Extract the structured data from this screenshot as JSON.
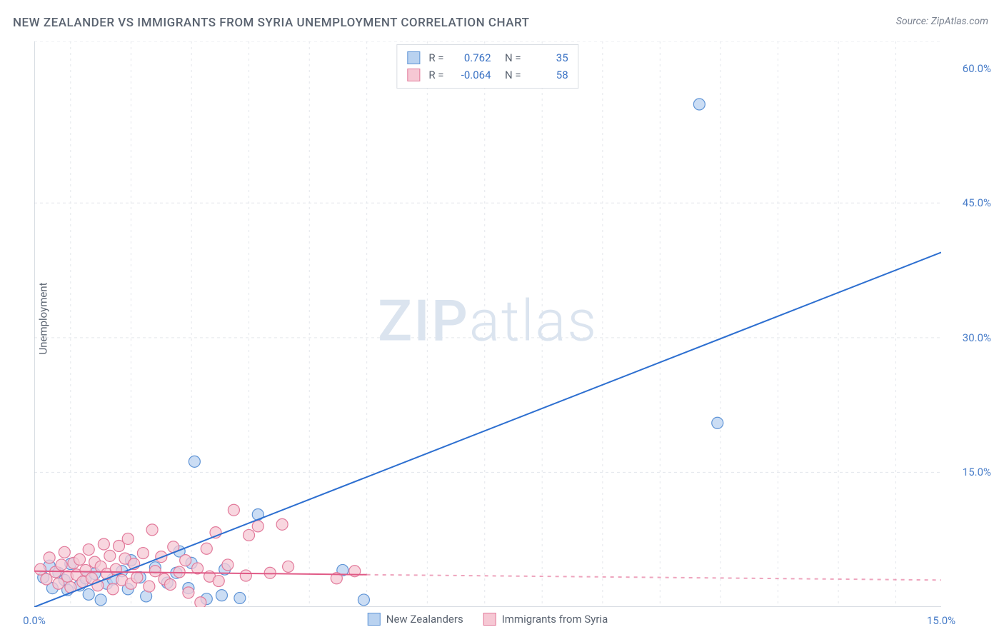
{
  "title": "NEW ZEALANDER VS IMMIGRANTS FROM SYRIA UNEMPLOYMENT CORRELATION CHART",
  "source": "Source: ZipAtlas.com",
  "ylabel": "Unemployment",
  "watermark_a": "ZIP",
  "watermark_b": "atlas",
  "chart": {
    "type": "scatter",
    "background_color": "#ffffff",
    "grid_color": "#e3e6eb",
    "axis_color": "#bfc6d0",
    "tick_label_color": "#4a7ec9",
    "xlim": [
      0,
      15
    ],
    "ylim": [
      0,
      63
    ],
    "x_ticks": [
      {
        "v": 0,
        "label": "0.0%"
      },
      {
        "v": 15,
        "label": "15.0%"
      }
    ],
    "y_ticks": [
      {
        "v": 15,
        "label": "15.0%"
      },
      {
        "v": 30,
        "label": "30.0%"
      },
      {
        "v": 45,
        "label": "45.0%"
      },
      {
        "v": 60,
        "label": "60.0%"
      }
    ],
    "y_gridlines": [
      15,
      30,
      45,
      63
    ],
    "x_gridlines": [
      0.6,
      1.6,
      2.6,
      3.55,
      4.55,
      5.5,
      6.5,
      7.45,
      8.4,
      9.4,
      10.35,
      11.35,
      12.3,
      13.3,
      14.25
    ],
    "series": [
      {
        "name": "New Zealanders",
        "marker_radius": 8,
        "marker_fill": "#b9d2f0",
        "marker_stroke": "#5f94d6",
        "marker_opacity": 0.75,
        "line_color": "#2d6fd0",
        "line_width": 2,
        "r": "0.762",
        "n": "35",
        "trend_solid": {
          "x1": 0,
          "y1": 0,
          "x2": 15,
          "y2": 39.5
        },
        "points": [
          [
            0.15,
            3.3
          ],
          [
            0.25,
            4.6
          ],
          [
            0.3,
            2.1
          ],
          [
            0.4,
            3.8
          ],
          [
            0.5,
            3.0
          ],
          [
            0.55,
            1.9
          ],
          [
            0.6,
            4.8
          ],
          [
            0.75,
            2.4
          ],
          [
            0.85,
            3.2
          ],
          [
            0.9,
            1.4
          ],
          [
            1.0,
            3.7
          ],
          [
            1.1,
            0.8
          ],
          [
            1.2,
            2.6
          ],
          [
            1.3,
            3.1
          ],
          [
            1.45,
            4.0
          ],
          [
            1.55,
            2.0
          ],
          [
            1.6,
            5.2
          ],
          [
            1.75,
            3.3
          ],
          [
            1.85,
            1.2
          ],
          [
            2.0,
            4.4
          ],
          [
            2.2,
            2.7
          ],
          [
            2.35,
            3.8
          ],
          [
            2.4,
            6.2
          ],
          [
            2.55,
            2.1
          ],
          [
            2.6,
            4.9
          ],
          [
            2.65,
            16.2
          ],
          [
            2.85,
            0.9
          ],
          [
            3.1,
            1.3
          ],
          [
            3.15,
            4.2
          ],
          [
            3.4,
            1.0
          ],
          [
            3.7,
            10.3
          ],
          [
            5.1,
            4.1
          ],
          [
            5.45,
            0.8
          ],
          [
            11.3,
            20.5
          ],
          [
            11.0,
            56.0
          ]
        ]
      },
      {
        "name": "Immigants from Syria",
        "legend_label": "Immigrants from Syria",
        "marker_radius": 8,
        "marker_fill": "#f6c8d4",
        "marker_stroke": "#e27a9b",
        "marker_opacity": 0.75,
        "line_color": "#e05a86",
        "line_width": 2,
        "r": "-0.064",
        "n": "58",
        "trend_solid": {
          "x1": 0,
          "y1": 4.0,
          "x2": 5.5,
          "y2": 3.6
        },
        "trend_dashed": {
          "x1": 5.5,
          "y1": 3.6,
          "x2": 15,
          "y2": 3.0
        },
        "points": [
          [
            0.1,
            4.2
          ],
          [
            0.2,
            3.1
          ],
          [
            0.25,
            5.5
          ],
          [
            0.35,
            3.9
          ],
          [
            0.4,
            2.6
          ],
          [
            0.45,
            4.7
          ],
          [
            0.5,
            6.1
          ],
          [
            0.55,
            3.4
          ],
          [
            0.6,
            2.2
          ],
          [
            0.65,
            4.9
          ],
          [
            0.7,
            3.6
          ],
          [
            0.75,
            5.3
          ],
          [
            0.8,
            2.8
          ],
          [
            0.85,
            4.1
          ],
          [
            0.9,
            6.4
          ],
          [
            0.95,
            3.2
          ],
          [
            1.0,
            5.0
          ],
          [
            1.05,
            2.4
          ],
          [
            1.1,
            4.5
          ],
          [
            1.15,
            7.0
          ],
          [
            1.2,
            3.7
          ],
          [
            1.25,
            5.7
          ],
          [
            1.3,
            2.0
          ],
          [
            1.35,
            4.2
          ],
          [
            1.4,
            6.8
          ],
          [
            1.45,
            3.0
          ],
          [
            1.5,
            5.4
          ],
          [
            1.55,
            7.6
          ],
          [
            1.6,
            2.6
          ],
          [
            1.65,
            4.8
          ],
          [
            1.7,
            3.3
          ],
          [
            1.8,
            6.0
          ],
          [
            1.9,
            2.3
          ],
          [
            1.95,
            8.6
          ],
          [
            2.0,
            4.0
          ],
          [
            2.1,
            5.6
          ],
          [
            2.15,
            3.1
          ],
          [
            2.25,
            2.5
          ],
          [
            2.3,
            6.7
          ],
          [
            2.4,
            3.9
          ],
          [
            2.5,
            5.2
          ],
          [
            2.55,
            1.6
          ],
          [
            2.7,
            4.3
          ],
          [
            2.75,
            0.5
          ],
          [
            2.85,
            6.5
          ],
          [
            2.9,
            3.4
          ],
          [
            3.0,
            8.3
          ],
          [
            3.05,
            2.9
          ],
          [
            3.2,
            4.7
          ],
          [
            3.3,
            10.8
          ],
          [
            3.5,
            3.5
          ],
          [
            3.55,
            8.0
          ],
          [
            3.7,
            9.0
          ],
          [
            3.9,
            3.8
          ],
          [
            4.1,
            9.2
          ],
          [
            4.2,
            4.5
          ],
          [
            5.0,
            3.2
          ],
          [
            5.3,
            4.0
          ]
        ]
      }
    ]
  },
  "legend_bottom": [
    {
      "label": "New Zealanders",
      "fill": "#b9d2f0",
      "stroke": "#5f94d6"
    },
    {
      "label": "Immigrants from Syria",
      "fill": "#f6c8d4",
      "stroke": "#e27a9b"
    }
  ]
}
